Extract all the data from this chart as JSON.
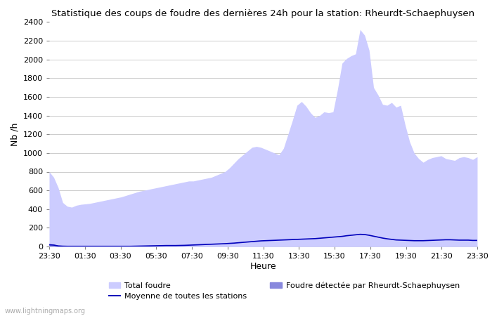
{
  "title": "Statistique des coups de foudre des dernières 24h pour la station: Rheurdt-Schaephuysen",
  "ylabel": "Nb /h",
  "xlabel": "Heure",
  "watermark": "www.lightningmaps.org",
  "ylim": [
    0,
    2400
  ],
  "yticks": [
    0,
    200,
    400,
    600,
    800,
    1000,
    1200,
    1400,
    1600,
    1800,
    2000,
    2200,
    2400
  ],
  "xtick_labels": [
    "23:30",
    "01:30",
    "03:30",
    "05:30",
    "07:30",
    "09:30",
    "11:30",
    "13:30",
    "15:30",
    "17:30",
    "19:30",
    "21:30",
    "23:30"
  ],
  "legend": {
    "total_foudre_label": "Total foudre",
    "total_foudre_color": "#ccccff",
    "moyenne_label": "Moyenne de toutes les stations",
    "moyenne_color": "#0000bb",
    "detected_label": "Foudre détectée par Rheurdt-Schaephuysen",
    "detected_color": "#8888dd"
  },
  "total_foudre": [
    800,
    740,
    630,
    470,
    430,
    420,
    440,
    450,
    455,
    460,
    470,
    480,
    490,
    500,
    510,
    520,
    530,
    545,
    560,
    575,
    590,
    600,
    610,
    620,
    630,
    640,
    650,
    660,
    670,
    680,
    690,
    700,
    700,
    710,
    720,
    730,
    740,
    760,
    780,
    800,
    840,
    890,
    940,
    980,
    1020,
    1060,
    1070,
    1060,
    1040,
    1020,
    1000,
    980,
    1050,
    1200,
    1350,
    1510,
    1550,
    1500,
    1430,
    1380,
    1400,
    1440,
    1430,
    1440,
    1680,
    1960,
    2010,
    2040,
    2060,
    2320,
    2260,
    2100,
    1700,
    1620,
    1520,
    1510,
    1540,
    1490,
    1510,
    1300,
    1120,
    1000,
    940,
    900,
    930,
    950,
    960,
    970,
    940,
    930,
    920,
    950,
    960,
    950,
    930,
    960
  ],
  "detected": [
    30,
    25,
    8,
    3,
    2,
    2,
    2,
    2,
    2,
    2,
    2,
    2,
    2,
    2,
    2,
    2,
    2,
    2,
    2,
    2,
    2,
    2,
    2,
    2,
    2,
    2,
    2,
    2,
    2,
    2,
    2,
    2,
    2,
    2,
    2,
    2,
    2,
    2,
    2,
    2,
    2,
    2,
    2,
    2,
    2,
    2,
    2,
    2,
    2,
    2,
    2,
    2,
    2,
    2,
    2,
    2,
    2,
    2,
    2,
    2,
    2,
    2,
    2,
    2,
    2,
    2,
    2,
    2,
    2,
    2,
    2,
    2,
    2,
    2,
    2,
    2,
    2,
    2,
    2,
    2,
    2,
    2,
    2,
    2,
    2,
    2,
    2,
    2,
    2,
    2,
    2,
    2,
    2,
    2,
    2,
    2
  ],
  "moyenne": [
    18,
    15,
    6,
    3,
    2,
    2,
    2,
    2,
    2,
    2,
    2,
    2,
    2,
    2,
    2,
    2,
    2,
    2,
    2,
    3,
    4,
    5,
    6,
    7,
    8,
    9,
    10,
    10,
    10,
    11,
    12,
    14,
    16,
    18,
    20,
    22,
    24,
    26,
    28,
    30,
    33,
    36,
    40,
    44,
    48,
    52,
    56,
    60,
    62,
    64,
    66,
    68,
    70,
    72,
    74,
    76,
    78,
    80,
    82,
    84,
    88,
    92,
    96,
    100,
    104,
    108,
    115,
    120,
    125,
    130,
    128,
    120,
    110,
    100,
    90,
    82,
    76,
    70,
    68,
    66,
    64,
    62,
    62,
    62,
    64,
    66,
    68,
    70,
    72,
    72,
    70,
    68,
    68,
    68,
    65,
    65
  ]
}
